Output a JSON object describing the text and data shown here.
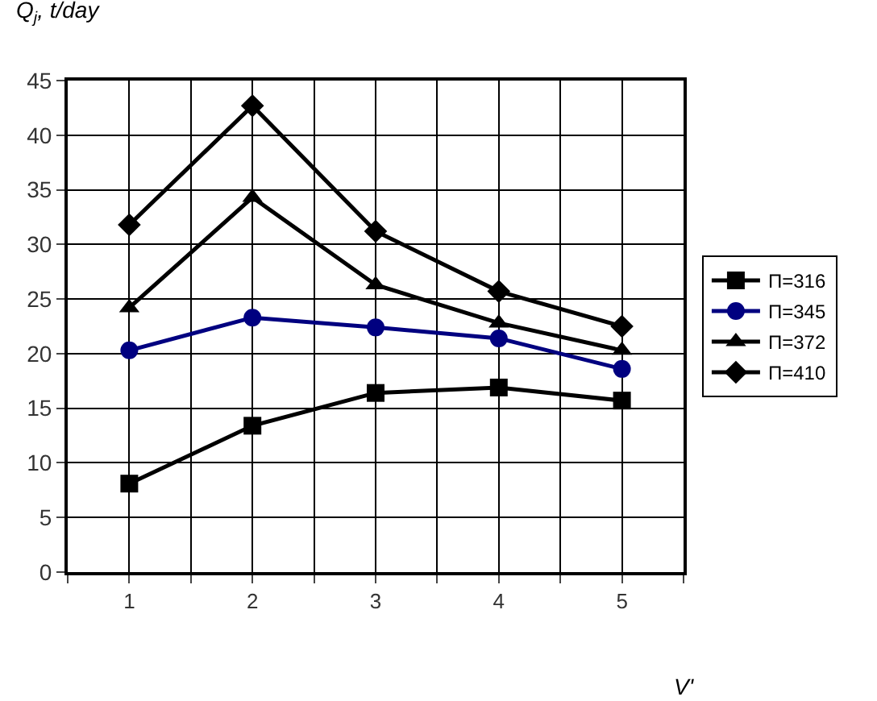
{
  "chart_data": {
    "type": "line",
    "xlabel": "V'",
    "ylabel": "Q$_{j}$, t/day",
    "x": [
      1,
      2,
      3,
      4,
      5
    ],
    "series": [
      {
        "name": "Π=316",
        "color": "#000000",
        "marker": "square",
        "values": [
          8.1,
          13.4,
          16.4,
          16.9,
          15.7
        ]
      },
      {
        "name": "Π=345",
        "color": "#000080",
        "marker": "circle",
        "values": [
          20.3,
          23.3,
          22.4,
          21.4,
          18.6
        ]
      },
      {
        "name": "Π=372",
        "color": "#000000",
        "marker": "triangle",
        "values": [
          24.2,
          34.3,
          26.3,
          22.8,
          20.3
        ]
      },
      {
        "name": "Π=410",
        "color": "#000000",
        "marker": "diamond",
        "values": [
          31.8,
          42.7,
          31.2,
          25.7,
          22.5
        ]
      }
    ],
    "xlim": [
      0.5,
      5.5
    ],
    "xticks": [
      {
        "value": 0.5,
        "label": null
      },
      1,
      {
        "value": 1.5,
        "label": null
      },
      2,
      {
        "value": 2.5,
        "label": null
      },
      3,
      {
        "value": 3.5,
        "label": null
      },
      4,
      {
        "value": 4.5,
        "label": null
      },
      5,
      {
        "value": 5.5,
        "label": null
      }
    ],
    "ylim": [
      0,
      45
    ],
    "yticks": [
      0,
      5,
      10,
      15,
      20,
      25,
      30,
      35,
      40,
      45
    ],
    "grid": true,
    "legend": "right",
    "line_style": "solid"
  }
}
